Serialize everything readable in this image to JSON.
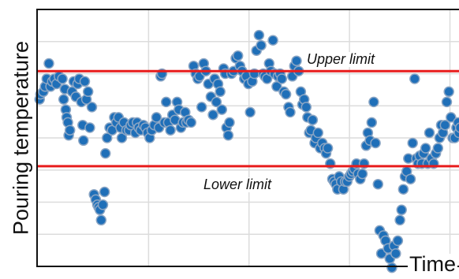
{
  "chart_data": {
    "type": "scatter",
    "title": "",
    "xlabel": "Time",
    "ylabel": "Pouring temperature",
    "xlim": [
      0,
      100
    ],
    "ylim": [
      0,
      100
    ],
    "grid": true,
    "colors": {
      "point_fill": "#1f6fb8",
      "point_stroke": "#8aa5c4",
      "limit_line": "#e81c1c",
      "grid": "#dcdcdc"
    },
    "limits": [
      {
        "name": "Upper limit",
        "value": 76
      },
      {
        "name": "Lower limit",
        "value": 39
      }
    ],
    "points": [
      [
        0.6,
        65
      ],
      [
        0.8,
        67
      ],
      [
        1.5,
        68
      ],
      [
        1.9,
        70
      ],
      [
        2.3,
        73
      ],
      [
        2.8,
        79
      ],
      [
        3.2,
        70
      ],
      [
        3.6,
        72
      ],
      [
        4.1,
        73
      ],
      [
        4.6,
        71
      ],
      [
        5.2,
        74
      ],
      [
        6.0,
        73
      ],
      [
        6.3,
        65
      ],
      [
        6.6,
        69
      ],
      [
        6.8,
        61
      ],
      [
        7.0,
        58
      ],
      [
        7.3,
        56
      ],
      [
        7.5,
        51
      ],
      [
        7.8,
        53
      ],
      [
        8.3,
        68
      ],
      [
        8.7,
        72
      ],
      [
        9.2,
        66
      ],
      [
        9.6,
        71
      ],
      [
        10.0,
        73
      ],
      [
        10.5,
        64
      ],
      [
        10.8,
        55
      ],
      [
        11.0,
        49
      ],
      [
        11.3,
        72
      ],
      [
        11.7,
        65
      ],
      [
        12.1,
        68
      ],
      [
        12.5,
        54
      ],
      [
        13.0,
        62
      ],
      [
        13.5,
        28
      ],
      [
        13.9,
        26
      ],
      [
        14.3,
        24
      ],
      [
        14.6,
        23
      ],
      [
        14.9,
        22
      ],
      [
        15.2,
        18
      ],
      [
        15.6,
        24
      ],
      [
        16.0,
        29
      ],
      [
        16.2,
        44
      ],
      [
        16.6,
        50
      ],
      [
        17.2,
        54
      ],
      [
        17.8,
        53
      ],
      [
        18.3,
        58
      ],
      [
        18.8,
        56
      ],
      [
        19.3,
        58
      ],
      [
        19.8,
        54
      ],
      [
        20.1,
        50
      ],
      [
        20.6,
        56
      ],
      [
        21.2,
        53
      ],
      [
        21.8,
        53
      ],
      [
        22.2,
        55
      ],
      [
        22.7,
        56
      ],
      [
        23.3,
        52
      ],
      [
        23.7,
        56
      ],
      [
        24.1,
        54
      ],
      [
        24.6,
        53
      ],
      [
        25.2,
        55
      ],
      [
        25.7,
        54
      ],
      [
        26.2,
        52
      ],
      [
        26.7,
        50
      ],
      [
        27.2,
        53
      ],
      [
        27.8,
        55
      ],
      [
        28.3,
        58
      ],
      [
        28.9,
        54
      ],
      [
        29.3,
        74
      ],
      [
        29.6,
        75
      ],
      [
        30.2,
        56
      ],
      [
        30.6,
        64
      ],
      [
        31.1,
        56
      ],
      [
        31.6,
        53
      ],
      [
        32.1,
        59
      ],
      [
        32.7,
        57
      ],
      [
        33.2,
        64
      ],
      [
        33.6,
        61
      ],
      [
        34.1,
        54
      ],
      [
        34.6,
        56
      ],
      [
        35.1,
        60
      ],
      [
        35.4,
        56
      ],
      [
        35.9,
        57
      ],
      [
        36.5,
        56
      ],
      [
        37.1,
        78
      ],
      [
        37.6,
        75
      ],
      [
        38.1,
        73
      ],
      [
        38.5,
        74
      ],
      [
        39.0,
        62
      ],
      [
        39.5,
        79
      ],
      [
        40.0,
        76
      ],
      [
        40.6,
        71
      ],
      [
        41.2,
        66
      ],
      [
        41.7,
        59
      ],
      [
        42.1,
        73
      ],
      [
        42.5,
        64
      ],
      [
        42.9,
        71
      ],
      [
        43.4,
        68
      ],
      [
        43.8,
        61
      ],
      [
        44.2,
        77
      ],
      [
        44.6,
        75
      ],
      [
        44.9,
        54
      ],
      [
        45.3,
        51
      ],
      [
        45.6,
        56
      ],
      [
        46.1,
        75
      ],
      [
        46.6,
        76
      ],
      [
        47.1,
        81
      ],
      [
        47.6,
        82
      ],
      [
        48.1,
        78
      ],
      [
        48.6,
        76
      ],
      [
        49.1,
        73
      ],
      [
        49.6,
        74
      ],
      [
        50.1,
        71
      ],
      [
        50.5,
        60
      ],
      [
        51.0,
        72
      ],
      [
        51.5,
        75
      ],
      [
        52.0,
        84
      ],
      [
        52.6,
        90
      ],
      [
        53.1,
        86
      ],
      [
        53.6,
        75
      ],
      [
        54.0,
        74
      ],
      [
        54.5,
        73
      ],
      [
        55.0,
        79
      ],
      [
        55.4,
        76
      ],
      [
        55.9,
        88
      ],
      [
        56.3,
        75
      ],
      [
        56.8,
        70
      ],
      [
        57.1,
        74
      ],
      [
        57.6,
        75
      ],
      [
        58.0,
        73
      ],
      [
        58.5,
        68
      ],
      [
        59.0,
        67
      ],
      [
        59.6,
        62
      ],
      [
        60.0,
        60
      ],
      [
        60.5,
        74
      ],
      [
        61.0,
        78
      ],
      [
        61.5,
        80
      ],
      [
        62.0,
        76
      ],
      [
        62.5,
        68
      ],
      [
        62.9,
        63
      ],
      [
        63.3,
        65
      ],
      [
        63.8,
        62
      ],
      [
        64.1,
        58
      ],
      [
        64.5,
        52
      ],
      [
        64.9,
        53
      ],
      [
        65.3,
        57
      ],
      [
        65.8,
        48
      ],
      [
        66.1,
        50
      ],
      [
        66.6,
        52
      ],
      [
        67.1,
        46
      ],
      [
        67.6,
        48
      ],
      [
        68.2,
        46
      ],
      [
        68.5,
        44
      ],
      [
        68.9,
        46
      ],
      [
        69.5,
        40
      ],
      [
        70.0,
        34
      ],
      [
        70.4,
        33
      ],
      [
        70.8,
        32
      ],
      [
        71.2,
        30
      ],
      [
        71.6,
        35
      ],
      [
        72.1,
        33
      ],
      [
        72.6,
        30
      ],
      [
        73.0,
        33
      ],
      [
        73.5,
        33
      ],
      [
        74.0,
        35
      ],
      [
        74.4,
        36
      ],
      [
        74.8,
        37
      ],
      [
        75.2,
        38
      ],
      [
        75.7,
        40
      ],
      [
        76.1,
        36
      ],
      [
        76.6,
        34
      ],
      [
        77.1,
        36
      ],
      [
        77.5,
        40
      ],
      [
        78.0,
        47
      ],
      [
        78.4,
        52
      ],
      [
        78.9,
        49
      ],
      [
        79.3,
        56
      ],
      [
        79.8,
        64
      ],
      [
        80.2,
        48
      ],
      [
        80.8,
        32
      ],
      [
        81.2,
        14
      ],
      [
        81.6,
        5
      ],
      [
        82.1,
        12
      ],
      [
        82.6,
        10
      ],
      [
        83.2,
        7
      ],
      [
        83.6,
        3
      ],
      [
        84.1,
        -0.5
      ],
      [
        84.6,
        8
      ],
      [
        85.0,
        5
      ],
      [
        85.5,
        10
      ],
      [
        86.0,
        18
      ],
      [
        86.4,
        22
      ],
      [
        86.8,
        30
      ],
      [
        87.2,
        35
      ],
      [
        87.6,
        37
      ],
      [
        88.0,
        42
      ],
      [
        88.5,
        34
      ],
      [
        89.0,
        48
      ],
      [
        89.5,
        73
      ],
      [
        89.9,
        42
      ],
      [
        90.3,
        40
      ],
      [
        90.7,
        43
      ],
      [
        91.2,
        40
      ],
      [
        91.6,
        44
      ],
      [
        92.1,
        46
      ],
      [
        92.6,
        40
      ],
      [
        93.0,
        52
      ],
      [
        93.5,
        42
      ],
      [
        94.0,
        40
      ],
      [
        94.5,
        44
      ],
      [
        95.0,
        46
      ],
      [
        95.4,
        50
      ],
      [
        95.8,
        55
      ],
      [
        96.2,
        52
      ],
      [
        96.7,
        55
      ],
      [
        97.1,
        64
      ],
      [
        97.6,
        68
      ],
      [
        98.1,
        58
      ],
      [
        98.5,
        50
      ],
      [
        99.0,
        50
      ],
      [
        99.4,
        54
      ],
      [
        99.8,
        56
      ],
      [
        100.0,
        52
      ],
      [
        100.3,
        54
      ]
    ]
  }
}
